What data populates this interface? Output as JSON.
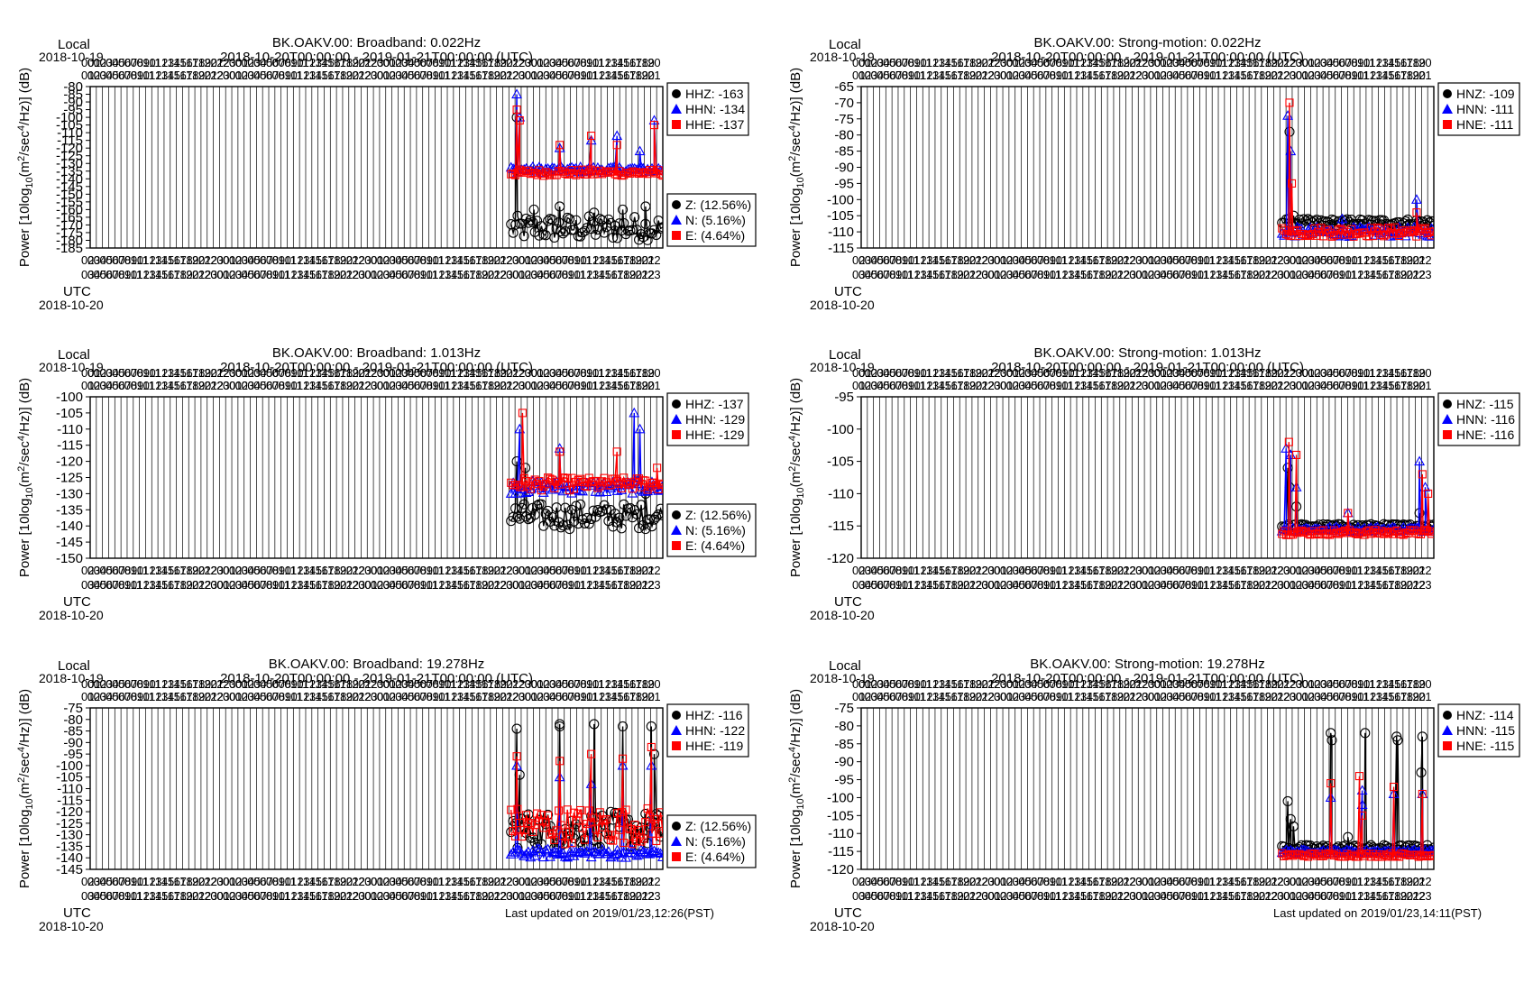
{
  "labels": {
    "local": "Local",
    "utc": "UTC",
    "local_date": "2018-10-19",
    "utc_date": "2018-10-20",
    "range": "2018-10-20T00:00:00 - 2019-01-21T00:00:00 (UTC)",
    "ylabel_pre": "Power [10log",
    "ylabel_sub": "10",
    "ylabel_mid": "(m",
    "ylabel_sup1": "2",
    "ylabel_mid2": "/sec",
    "ylabel_sup2": "4",
    "ylabel_post": "/Hz)] (dB)"
  },
  "colors": {
    "z": "#000000",
    "n": "#0000ff",
    "e": "#ff0000",
    "grid": "#000000"
  },
  "footer": {
    "left": "Last updated on 2019/01/23,12:26(PST)",
    "right": "Last updated on 2019/01/23,14:11(PST)"
  },
  "chart_data": [
    {
      "type": "scatter",
      "title": "BK.OAKV.00: Broadband: 0.022Hz",
      "ylim": [
        -185,
        -80
      ],
      "yticks": [
        -80,
        -85,
        -90,
        -95,
        -100,
        -105,
        -110,
        -115,
        -120,
        -125,
        -130,
        -135,
        -140,
        -145,
        -150,
        -155,
        -160,
        -165,
        -170,
        -175,
        -180,
        -185
      ],
      "legend": [
        {
          "name": "HHZ: -163",
          "color": "#000000",
          "marker": "circle"
        },
        {
          "name": "HHN: -134",
          "color": "#0000ff",
          "marker": "triangle"
        },
        {
          "name": "HHE: -137",
          "color": "#ff0000",
          "marker": "square"
        }
      ],
      "coverage": [
        {
          "name": "Z: (12.56%)",
          "color": "#000000",
          "marker": "circle"
        },
        {
          "name": "N: (5.16%)",
          "color": "#0000ff",
          "marker": "triangle"
        },
        {
          "name": "E: (4.64%)",
          "color": "#ff0000",
          "marker": "square"
        }
      ],
      "series": [
        {
          "name": "Z",
          "start": 0.735,
          "base": -172,
          "noise": 8,
          "floor": -180,
          "spikes": [
            [
              0.745,
              -100
            ],
            [
              0.775,
              -160
            ],
            [
              0.82,
              -158
            ],
            [
              0.88,
              -162
            ],
            [
              0.93,
              -160
            ],
            [
              0.97,
              -158
            ]
          ]
        },
        {
          "name": "N",
          "start": 0.735,
          "base": -134,
          "noise": 2,
          "floor": -140,
          "spikes": [
            [
              0.745,
              -85
            ],
            [
              0.75,
              -100
            ],
            [
              0.82,
              -120
            ],
            [
              0.875,
              -115
            ],
            [
              0.92,
              -112
            ],
            [
              0.96,
              -122
            ],
            [
              0.985,
              -102
            ]
          ]
        },
        {
          "name": "E",
          "start": 0.735,
          "base": -136,
          "noise": 2,
          "floor": -140,
          "spikes": [
            [
              0.745,
              -95
            ],
            [
              0.75,
              -102
            ],
            [
              0.82,
              -118
            ],
            [
              0.875,
              -112
            ],
            [
              0.92,
              -118
            ],
            [
              0.985,
              -105
            ]
          ]
        }
      ]
    },
    {
      "type": "scatter",
      "title": "BK.OAKV.00: Strong-motion: 0.022Hz",
      "ylim": [
        -115,
        -65
      ],
      "yticks": [
        -65,
        -70,
        -75,
        -80,
        -85,
        -90,
        -95,
        -100,
        -105,
        -110,
        -115
      ],
      "legend": [
        {
          "name": "HNZ: -109",
          "color": "#000000",
          "marker": "circle"
        },
        {
          "name": "HNN: -111",
          "color": "#0000ff",
          "marker": "triangle"
        },
        {
          "name": "HNE: -111",
          "color": "#ff0000",
          "marker": "square"
        }
      ],
      "coverage": [],
      "series": [
        {
          "name": "Z",
          "start": 0.735,
          "base": -107,
          "noise": 1,
          "floor": -109,
          "spikes": [
            [
              0.748,
              -79
            ],
            [
              0.755,
              -105
            ]
          ]
        },
        {
          "name": "N",
          "start": 0.735,
          "base": -110,
          "noise": 1.5,
          "floor": -113,
          "spikes": [
            [
              0.745,
              -74
            ],
            [
              0.75,
              -85
            ],
            [
              0.84,
              -106
            ],
            [
              0.97,
              -100
            ]
          ]
        },
        {
          "name": "E",
          "start": 0.735,
          "base": -110,
          "noise": 1.5,
          "floor": -113,
          "spikes": [
            [
              0.748,
              -70
            ],
            [
              0.752,
              -95
            ],
            [
              0.97,
              -104
            ]
          ]
        }
      ]
    },
    {
      "type": "scatter",
      "title": "BK.OAKV.00: Broadband: 1.013Hz",
      "ylim": [
        -150,
        -100
      ],
      "yticks": [
        -100,
        -105,
        -110,
        -115,
        -120,
        -125,
        -130,
        -135,
        -140,
        -145,
        -150
      ],
      "legend": [
        {
          "name": "HHZ: -137",
          "color": "#000000",
          "marker": "circle"
        },
        {
          "name": "HHN: -129",
          "color": "#0000ff",
          "marker": "triangle"
        },
        {
          "name": "HHE: -129",
          "color": "#ff0000",
          "marker": "square"
        }
      ],
      "coverage": [
        {
          "name": "Z: (12.56%)",
          "color": "#000000",
          "marker": "circle"
        },
        {
          "name": "N: (5.16%)",
          "color": "#0000ff",
          "marker": "triangle"
        },
        {
          "name": "E: (4.64%)",
          "color": "#ff0000",
          "marker": "square"
        }
      ],
      "series": [
        {
          "name": "Z",
          "start": 0.735,
          "base": -137,
          "noise": 4,
          "floor": -145,
          "spikes": [
            [
              0.745,
              -120
            ],
            [
              0.76,
              -122
            ],
            [
              0.97,
              -130
            ]
          ]
        },
        {
          "name": "N",
          "start": 0.735,
          "base": -128,
          "noise": 2,
          "floor": -133,
          "spikes": [
            [
              0.75,
              -110
            ],
            [
              0.82,
              -116
            ],
            [
              0.95,
              -105
            ],
            [
              0.96,
              -110
            ]
          ]
        },
        {
          "name": "E",
          "start": 0.735,
          "base": -127,
          "noise": 2,
          "floor": -133,
          "spikes": [
            [
              0.755,
              -105
            ],
            [
              0.82,
              -117
            ],
            [
              0.92,
              -117
            ],
            [
              0.99,
              -122
            ]
          ]
        }
      ]
    },
    {
      "type": "scatter",
      "title": "BK.OAKV.00: Strong-motion: 1.013Hz",
      "ylim": [
        -120,
        -95
      ],
      "yticks": [
        -95,
        -100,
        -105,
        -110,
        -115,
        -120
      ],
      "legend": [
        {
          "name": "HNZ: -115",
          "color": "#000000",
          "marker": "circle"
        },
        {
          "name": "HNN: -116",
          "color": "#0000ff",
          "marker": "triangle"
        },
        {
          "name": "HNE: -116",
          "color": "#ff0000",
          "marker": "square"
        }
      ],
      "coverage": [],
      "series": [
        {
          "name": "Z",
          "start": 0.735,
          "base": -115,
          "noise": 0.3,
          "floor": -116,
          "spikes": [
            [
              0.745,
              -106
            ],
            [
              0.748,
              -109
            ],
            [
              0.76,
              -112
            ],
            [
              0.975,
              -113
            ]
          ]
        },
        {
          "name": "N",
          "start": 0.735,
          "base": -115.5,
          "noise": 0.4,
          "floor": -116,
          "spikes": [
            [
              0.742,
              -103
            ],
            [
              0.75,
              -104
            ],
            [
              0.76,
              -109
            ],
            [
              0.85,
              -113
            ],
            [
              0.975,
              -105
            ],
            [
              0.985,
              -109
            ]
          ]
        },
        {
          "name": "E",
          "start": 0.735,
          "base": -116,
          "noise": 0.4,
          "floor": -116.5,
          "spikes": [
            [
              0.747,
              -102
            ],
            [
              0.76,
              -104
            ],
            [
              0.85,
              -113
            ],
            [
              0.98,
              -107
            ],
            [
              0.99,
              -110
            ]
          ]
        }
      ]
    },
    {
      "type": "scatter",
      "title": "BK.OAKV.00: Broadband: 19.278Hz",
      "ylim": [
        -145,
        -75
      ],
      "yticks": [
        -75,
        -80,
        -85,
        -90,
        -95,
        -100,
        -105,
        -110,
        -115,
        -120,
        -125,
        -130,
        -135,
        -140,
        -145
      ],
      "legend": [
        {
          "name": "HHZ: -116",
          "color": "#000000",
          "marker": "circle"
        },
        {
          "name": "HHN: -122",
          "color": "#0000ff",
          "marker": "triangle"
        },
        {
          "name": "HHE: -119",
          "color": "#ff0000",
          "marker": "square"
        }
      ],
      "coverage": [
        {
          "name": "Z: (12.56%)",
          "color": "#000000",
          "marker": "circle"
        },
        {
          "name": "N: (5.16%)",
          "color": "#0000ff",
          "marker": "triangle"
        },
        {
          "name": "E: (4.64%)",
          "color": "#ff0000",
          "marker": "square"
        }
      ],
      "series": [
        {
          "name": "Z",
          "start": 0.735,
          "base": -128,
          "noise": 8,
          "floor": -138,
          "spikes": [
            [
              0.745,
              -84
            ],
            [
              0.75,
              -104
            ],
            [
              0.82,
              -82
            ],
            [
              0.82,
              -83
            ],
            [
              0.88,
              -82
            ],
            [
              0.93,
              -83
            ],
            [
              0.98,
              -83
            ],
            [
              0.985,
              -95
            ]
          ]
        },
        {
          "name": "N",
          "start": 0.735,
          "base": -138,
          "noise": 2,
          "floor": -140,
          "spikes": [
            [
              0.745,
              -100
            ],
            [
              0.82,
              -105
            ],
            [
              0.875,
              -108
            ],
            [
              0.93,
              -100
            ],
            [
              0.98,
              -100
            ]
          ]
        },
        {
          "name": "E",
          "start": 0.735,
          "base": -126,
          "noise": 8,
          "floor": -136,
          "spikes": [
            [
              0.745,
              -96
            ],
            [
              0.82,
              -98
            ],
            [
              0.875,
              -95
            ],
            [
              0.93,
              -97
            ],
            [
              0.98,
              -92
            ]
          ]
        }
      ]
    },
    {
      "type": "scatter",
      "title": "BK.OAKV.00: Strong-motion: 19.278Hz",
      "ylim": [
        -120,
        -75
      ],
      "yticks": [
        -75,
        -80,
        -85,
        -90,
        -95,
        -100,
        -105,
        -110,
        -115,
        -120
      ],
      "legend": [
        {
          "name": "HNZ: -114",
          "color": "#000000",
          "marker": "circle"
        },
        {
          "name": "HNN: -115",
          "color": "#0000ff",
          "marker": "triangle"
        },
        {
          "name": "HNE: -115",
          "color": "#ff0000",
          "marker": "square"
        }
      ],
      "coverage": [],
      "series": [
        {
          "name": "Z",
          "start": 0.735,
          "base": -114,
          "noise": 0.8,
          "floor": -116,
          "spikes": [
            [
              0.745,
              -101
            ],
            [
              0.75,
              -106
            ],
            [
              0.755,
              -108
            ],
            [
              0.82,
              -82
            ],
            [
              0.822,
              -84
            ],
            [
              0.85,
              -111
            ],
            [
              0.88,
              -82
            ],
            [
              0.935,
              -83
            ],
            [
              0.937,
              -84
            ],
            [
              0.98,
              -83
            ],
            [
              0.978,
              -93
            ]
          ]
        },
        {
          "name": "N",
          "start": 0.735,
          "base": -115,
          "noise": 0.5,
          "floor": -116,
          "spikes": [
            [
              0.82,
              -100
            ],
            [
              0.875,
              -98
            ],
            [
              0.875,
              -102
            ],
            [
              0.93,
              -99
            ],
            [
              0.98,
              -99
            ]
          ]
        },
        {
          "name": "E",
          "start": 0.735,
          "base": -116,
          "noise": 0.5,
          "floor": -117,
          "spikes": [
            [
              0.82,
              -96
            ],
            [
              0.87,
              -94
            ],
            [
              0.875,
              -105
            ],
            [
              0.93,
              -97
            ],
            [
              0.98,
              -99
            ]
          ]
        }
      ]
    }
  ]
}
